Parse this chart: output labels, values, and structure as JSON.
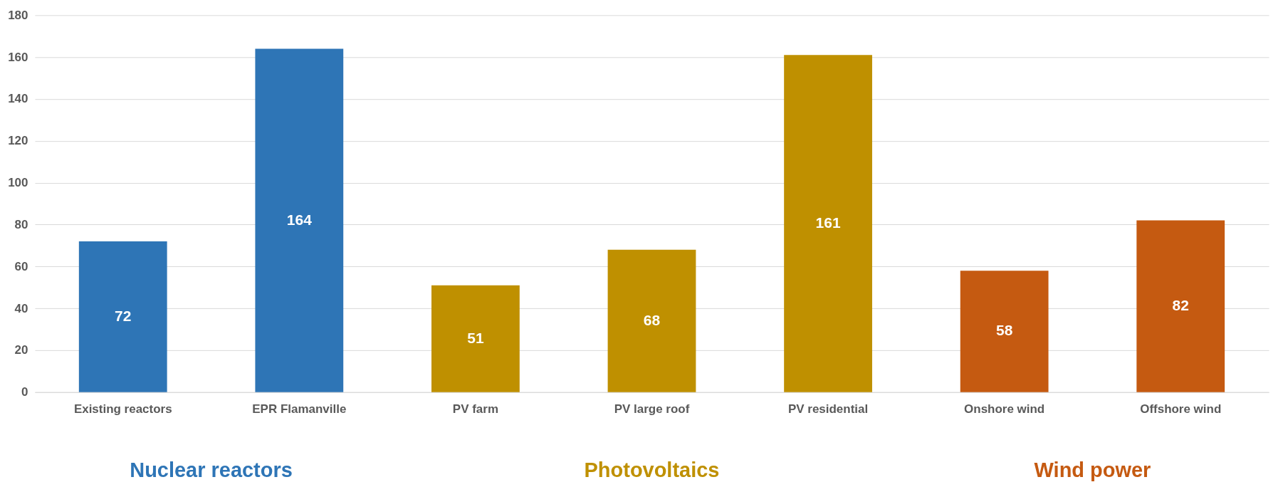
{
  "chart_data": {
    "type": "bar",
    "categories": [
      "Existing reactors",
      "EPR Flamanville",
      "PV farm",
      "PV large roof",
      "PV residential",
      "Onshore wind",
      "Offshore wind"
    ],
    "series": [
      {
        "name": "Nuclear reactors",
        "color": "#2e75b6",
        "values": [
          72,
          164,
          null,
          null,
          null,
          null,
          null
        ]
      },
      {
        "name": "Photovoltaics",
        "color": "#bf9000",
        "values": [
          null,
          null,
          51,
          68,
          161,
          null,
          null
        ]
      },
      {
        "name": "Wind power",
        "color": "#c55a11",
        "values": [
          null,
          null,
          null,
          null,
          null,
          58,
          82
        ]
      }
    ],
    "ylim": [
      0,
      180
    ],
    "yticks": [
      0,
      20,
      40,
      60,
      80,
      100,
      120,
      140,
      160,
      180
    ],
    "grid": "y",
    "data_labels": true,
    "legend": "bottom"
  }
}
